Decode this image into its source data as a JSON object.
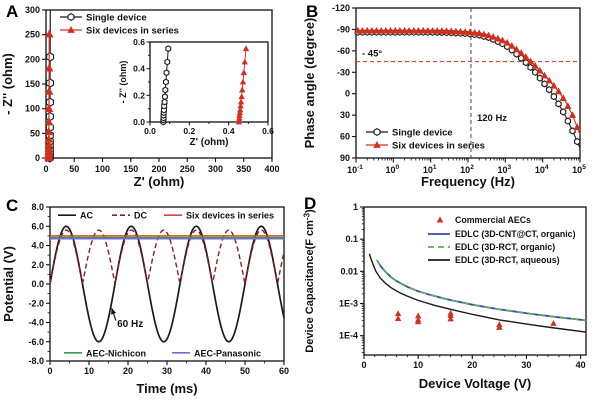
{
  "panels": {
    "a": {
      "label": "A"
    },
    "b": {
      "label": "B"
    },
    "c": {
      "label": "C"
    },
    "d": {
      "label": "D"
    }
  },
  "colors": {
    "red": "#d2301f",
    "dark_red": "#8e1f1f",
    "light_red": "#d9453a",
    "green": "#2e9e4f",
    "light_green": "#5ab54b",
    "blue": "#3a46b4",
    "slate_blue": "#7070c8",
    "black": "#1a1a1a"
  },
  "chart_data": [
    {
      "panel": "A",
      "type": "scatter",
      "xlabel": "Z' (ohm)",
      "ylabel": "- Z'' (ohm)",
      "xlim": [
        0,
        400
      ],
      "xticks": [
        0,
        50,
        100,
        150,
        200,
        250,
        300,
        350,
        400
      ],
      "ylim": [
        0,
        300
      ],
      "yticks": [
        0,
        50,
        100,
        150,
        200,
        250,
        300
      ],
      "series": [
        {
          "name": "Single device",
          "color": "#1a1a1a",
          "marker": "hexagon-open",
          "x": [
            6.5,
            6.5,
            6.5,
            6.55,
            6.55,
            6.6,
            6.6,
            6.65,
            6.7,
            6.75,
            6.8,
            6.9,
            7.0,
            7.1,
            7.3,
            7.6
          ],
          "y": [
            0,
            2,
            4,
            6,
            9,
            13,
            18,
            25,
            34,
            46,
            62,
            84,
            113,
            152,
            205,
            300
          ]
        },
        {
          "name": "Six devices in series",
          "color": "#d2301f",
          "marker": "triangle-filled",
          "x": [
            4.8,
            4.8,
            4.85,
            4.85,
            4.9,
            4.9,
            4.95,
            5.0,
            5.05,
            5.1,
            5.2,
            5.3,
            5.4,
            5.55,
            5.75
          ],
          "y": [
            0,
            2,
            4,
            6,
            9,
            13,
            19,
            27,
            38,
            53,
            73,
            100,
            135,
            182,
            251
          ]
        }
      ],
      "inset": {
        "xlabel": "Z' (ohm)",
        "ylabel": "- Z'' (ohm)",
        "xlim": [
          0,
          0.6
        ],
        "xticks": [
          0,
          0.2,
          0.4,
          0.6
        ],
        "ylim": [
          0,
          0.6
        ],
        "yticks": [
          0,
          0.2,
          0.4,
          0.6
        ],
        "series": [
          {
            "name": "Single device",
            "color": "#1a1a1a",
            "marker": "hexagon-open",
            "x": [
              0.068,
              0.068,
              0.069,
              0.069,
              0.07,
              0.071,
              0.072,
              0.074,
              0.076,
              0.078,
              0.081,
              0.084,
              0.088,
              0.093
            ],
            "y": [
              0,
              0.015,
              0.03,
              0.05,
              0.07,
              0.09,
              0.12,
              0.15,
              0.19,
              0.24,
              0.3,
              0.37,
              0.45,
              0.55
            ]
          },
          {
            "name": "Six devices in series",
            "color": "#d2301f",
            "marker": "triangle-filled",
            "x": [
              0.452,
              0.453,
              0.454,
              0.455,
              0.457,
              0.459,
              0.461,
              0.463,
              0.466,
              0.469,
              0.473,
              0.477,
              0.482,
              0.488
            ],
            "y": [
              0,
              0.015,
              0.03,
              0.05,
              0.07,
              0.09,
              0.12,
              0.15,
              0.19,
              0.24,
              0.3,
              0.37,
              0.45,
              0.55
            ]
          }
        ]
      }
    },
    {
      "panel": "B",
      "type": "line",
      "xlabel": "Frequency (Hz)",
      "ylabel": "Phase angle (degree)",
      "x_scale": "log",
      "x_exponents": [
        -1,
        0,
        1,
        2,
        3,
        4,
        5
      ],
      "ylim": [
        -120,
        90
      ],
      "y_inverted": true,
      "yticks": [
        -120,
        -90,
        -60,
        -30,
        0,
        30,
        60,
        90
      ],
      "series": [
        {
          "name": "Single device",
          "color": "#1a1a1a",
          "marker": "hexagon-open",
          "logf": [
            -1,
            -0.5,
            0,
            0.5,
            1,
            1.5,
            2,
            2.3,
            2.6,
            3,
            3.2,
            3.4,
            3.6,
            3.8,
            4,
            4.2,
            4.4,
            4.6,
            4.8,
            5
          ],
          "phase": [
            -86,
            -86,
            -86,
            -86,
            -86,
            -85.5,
            -84,
            -82,
            -78,
            -68,
            -60,
            -51,
            -41,
            -30,
            -17,
            -4,
            12,
            30,
            52,
            76
          ]
        },
        {
          "name": "Six devices in series",
          "color": "#d2301f",
          "marker": "triangle-filled",
          "logf": [
            -1,
            -0.5,
            0,
            0.5,
            1,
            1.5,
            2,
            2.3,
            2.6,
            3,
            3.2,
            3.4,
            3.6,
            3.8,
            4,
            4.2,
            4.4,
            4.6,
            4.8,
            5
          ],
          "phase": [
            -88,
            -88,
            -88,
            -88,
            -88,
            -87.5,
            -86,
            -84.5,
            -81,
            -73,
            -66,
            -58,
            -49,
            -39,
            -28,
            -17,
            -5,
            10,
            30,
            57
          ]
        }
      ],
      "annotations": {
        "hline": {
          "value": -45,
          "label": "- 45°",
          "color": "#d2301f"
        },
        "vline": {
          "value_hz": 120,
          "label": "120 Hz",
          "color": "#444444"
        }
      }
    },
    {
      "panel": "C",
      "type": "line",
      "xlabel": "Time (ms)",
      "ylabel": "Potential (V)",
      "xlim": [
        0,
        60
      ],
      "xticks": [
        0,
        10,
        20,
        30,
        40,
        50,
        60
      ],
      "ylim": [
        -8,
        8
      ],
      "yticks": [
        8,
        6,
        4,
        2,
        0,
        -2,
        -4,
        -6,
        -8
      ],
      "series": [
        {
          "name": "AC",
          "color": "#1a1a1a",
          "style": "solid",
          "waveform": "sine",
          "amplitude": 6.0,
          "frequency_hz": 60
        },
        {
          "name": "DC",
          "color": "#8e1f1f",
          "style": "dashed",
          "waveform": "rectified-sine",
          "peak": 5.6,
          "frequency_hz": 60
        },
        {
          "name": "Six devices in series",
          "color": "#d9453a",
          "style": "solid",
          "waveform": "constant",
          "value": 5.0
        },
        {
          "name": "AEC-Nichicon",
          "color": "#2e9e4f",
          "style": "solid",
          "waveform": "constant",
          "value": 4.82
        },
        {
          "name": "AEC-Panasonic",
          "color": "#7070c8",
          "style": "solid",
          "waveform": "constant",
          "value": 4.7
        }
      ],
      "annotations": {
        "freq_label": "60 Hz"
      }
    },
    {
      "panel": "D",
      "type": "line",
      "xlabel": "Device Voltage (V)",
      "ylabel": "Device Capacitance(F cm⁻³)",
      "xlim": [
        0,
        41
      ],
      "xticks": [
        0,
        10,
        20,
        30,
        40
      ],
      "y_scale": "log",
      "ytick_labels": [
        "1",
        "0.1",
        "0.01",
        "1E-3",
        "1E-4"
      ],
      "ytick_values": [
        1,
        0.1,
        0.01,
        0.001,
        0.0001
      ],
      "series": [
        {
          "name": "Commercial AECs",
          "color": "#d2301f",
          "marker": "triangle-filled",
          "points": [
            [
              6.3,
              0.00048
            ],
            [
              6.3,
              0.00034
            ],
            [
              10,
              0.00041
            ],
            [
              10,
              0.00031
            ],
            [
              10,
              0.00027
            ],
            [
              16,
              0.0005
            ],
            [
              16,
              0.00042
            ],
            [
              16,
              0.00033
            ],
            [
              25,
              0.00022
            ],
            [
              25,
              0.00018
            ],
            [
              35,
              0.00024
            ]
          ]
        },
        {
          "name": "EDLC (3D-CNT@CT, organic)",
          "color": "#3a46b4",
          "style": "solid",
          "v": [
            2.5,
            3,
            4,
            5,
            6,
            8,
            10,
            12,
            15,
            20,
            25,
            30,
            35,
            41
          ],
          "c": [
            0.021,
            0.015,
            0.0095,
            0.0066,
            0.005,
            0.0033,
            0.0024,
            0.0019,
            0.0014,
            0.00092,
            0.00066,
            0.0005,
            0.00039,
            0.0003
          ]
        },
        {
          "name": "EDLC (3D-RCT, organic)",
          "color": "#5ab54b",
          "style": "dashed",
          "v": [
            2.3,
            3,
            4,
            5,
            6,
            8,
            10,
            12,
            15,
            20,
            25,
            30,
            35,
            41
          ],
          "c": [
            0.023,
            0.0155,
            0.0097,
            0.0067,
            0.0051,
            0.0034,
            0.0024,
            0.0019,
            0.0014,
            0.00092,
            0.00066,
            0.0005,
            0.00039,
            0.0003
          ]
        },
        {
          "name": "EDLC (3D-RCT, aqueous)",
          "color": "#1a1a1a",
          "style": "solid",
          "v": [
            1,
            1.3,
            1.7,
            2.2,
            3,
            4,
            5,
            6.5,
            8,
            10,
            13,
            16,
            20,
            25,
            30,
            35,
            41
          ],
          "c": [
            0.035,
            0.024,
            0.016,
            0.01,
            0.0062,
            0.0042,
            0.0031,
            0.0022,
            0.0017,
            0.00125,
            0.00088,
            0.00066,
            0.00046,
            0.00031,
            0.00023,
            0.000175,
            0.00013
          ]
        }
      ]
    }
  ]
}
